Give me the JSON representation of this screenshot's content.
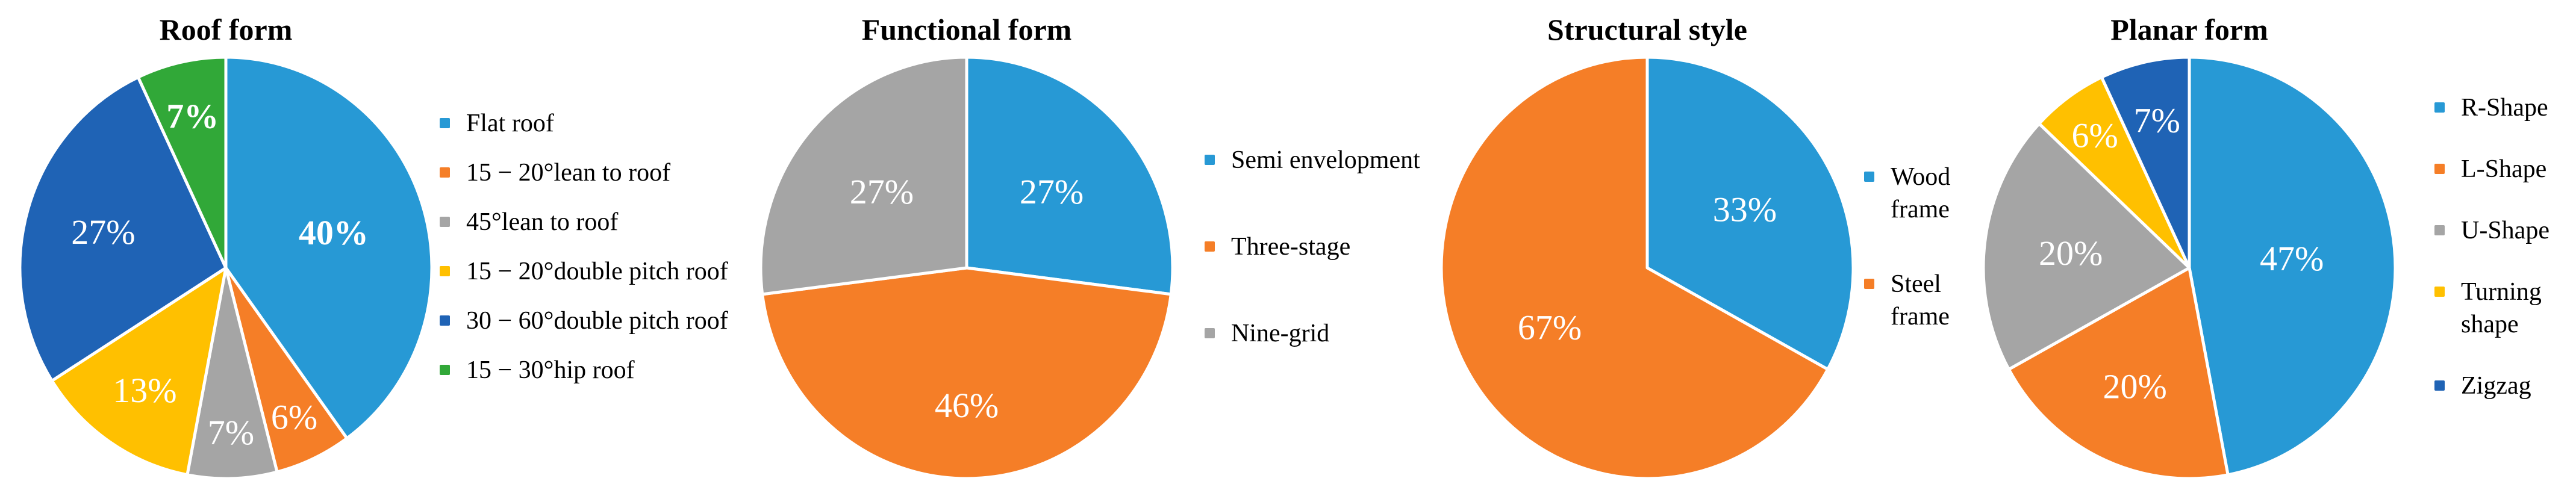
{
  "chart_data": [
    {
      "type": "pie",
      "title": "Roof form",
      "legend_position": "right",
      "start_angle_deg": 0,
      "slices": [
        {
          "label": "Flat roof",
          "value": 40,
          "pct_label": "40%",
          "color": "#2799D5",
          "label_r": 0.55,
          "label_bold": true
        },
        {
          "label": "15 − 20°lean to roof",
          "value": 6,
          "pct_label": "6%",
          "color": "#F57E27",
          "label_r": 0.78,
          "label_bold": false
        },
        {
          "label": "45°lean to roof",
          "value": 7,
          "pct_label": "7%",
          "color": "#A5A5A5",
          "label_r": 0.78,
          "label_bold": false
        },
        {
          "label": "15 − 20°double pitch roof",
          "value": 13,
          "pct_label": "13%",
          "color": "#FFC000",
          "label_r": 0.7,
          "label_bold": false
        },
        {
          "label": "30 − 60°double pitch roof",
          "value": 27,
          "pct_label": "27%",
          "color": "#1F63B5",
          "label_r": 0.62,
          "label_bold": false
        },
        {
          "label": "15 − 30°hip roof",
          "value": 7,
          "pct_label": "7%",
          "color": "#31A838",
          "label_r": 0.74,
          "label_bold": true
        }
      ]
    },
    {
      "type": "pie",
      "title": "Functional form",
      "legend_position": "right",
      "start_angle_deg": 0,
      "slices": [
        {
          "label": "Semi envelopment",
          "value": 27,
          "pct_label": "27%",
          "color": "#2799D5",
          "label_r": 0.55,
          "label_bold": false
        },
        {
          "label": "Three-stage",
          "value": 46,
          "pct_label": "46%",
          "color": "#F57E27",
          "label_r": 0.65,
          "label_bold": false
        },
        {
          "label": "Nine-grid",
          "value": 27,
          "pct_label": "27%",
          "color": "#A5A5A5",
          "label_r": 0.55,
          "label_bold": false
        }
      ]
    },
    {
      "type": "pie",
      "title": "Structural style",
      "legend_position": "right",
      "start_angle_deg": 0,
      "slices": [
        {
          "label": "Wood frame",
          "value": 33,
          "pct_label": "33%",
          "color": "#2799D5",
          "label_r": 0.55,
          "label_bold": false
        },
        {
          "label": "Steel frame",
          "value": 67,
          "pct_label": "67%",
          "color": "#F57E27",
          "label_r": 0.55,
          "label_bold": false
        }
      ]
    },
    {
      "type": "pie",
      "title": "Planar form",
      "legend_position": "right",
      "start_angle_deg": 0,
      "slices": [
        {
          "label": "R-Shape",
          "value": 47,
          "pct_label": "47%",
          "color": "#2799D5",
          "label_r": 0.5,
          "label_bold": false
        },
        {
          "label": "L-Shape",
          "value": 20,
          "pct_label": "20%",
          "color": "#F57E27",
          "label_r": 0.62,
          "label_bold": false
        },
        {
          "label": "U-Shape",
          "value": 20,
          "pct_label": "20%",
          "color": "#A5A5A5",
          "label_r": 0.58,
          "label_bold": false
        },
        {
          "label": "Turning shape",
          "value": 6,
          "pct_label": "6%",
          "color": "#FFC000",
          "label_r": 0.78,
          "label_bold": false
        },
        {
          "label": "Zigzag",
          "value": 7,
          "pct_label": "7%",
          "color": "#1F63B5",
          "label_r": 0.72,
          "label_bold": false
        }
      ]
    }
  ]
}
